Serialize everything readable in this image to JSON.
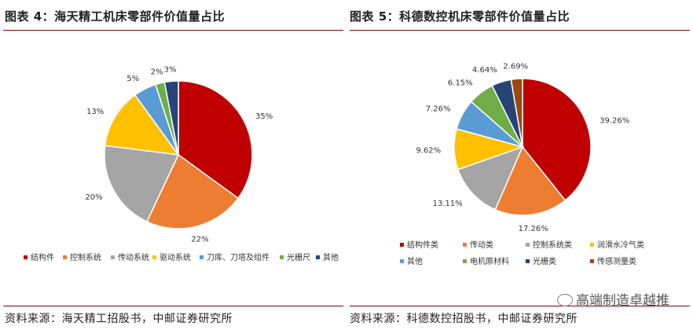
{
  "left": {
    "title": "图表 4：海天精工机床零部件价值量占比",
    "source": "资料来源：海天精工招股书，中邮证券研究所"
  },
  "right": {
    "title": "图表 5：科德数控机床零部件价值量占比",
    "source": "资料来源：科德数控招股书，中邮证券研究所"
  },
  "watermark": "高端制造卓越推",
  "chart_data": [
    {
      "type": "pie",
      "categories": [
        "结构件",
        "控制系统",
        "传动系统",
        "驱动系统",
        "刀库、刀塔及组件",
        "光栅尺",
        "其他"
      ],
      "values": [
        35,
        22,
        20,
        13,
        5,
        2,
        3
      ],
      "value_labels": [
        "35%",
        "22%",
        "20%",
        "13%",
        "5%",
        "2%",
        "3%"
      ],
      "colors": [
        "#c00000",
        "#ed7d31",
        "#a5a5a5",
        "#ffc000",
        "#5b9bd5",
        "#70ad47",
        "#264478"
      ],
      "legend_position": "bottom"
    },
    {
      "type": "pie",
      "categories": [
        "结构件类",
        "传动类",
        "控制系统类",
        "润滑水冷气类",
        "其他",
        "电机原材料",
        "光栅类",
        "传感测量类"
      ],
      "values": [
        39.26,
        17.26,
        13.11,
        9.62,
        7.26,
        6.15,
        4.64,
        2.69
      ],
      "value_labels": [
        "39.26%",
        "17.26%",
        "13.11%",
        "9.62%",
        "7.26%",
        "6.15%",
        "4.64%",
        "2.69%"
      ],
      "colors": [
        "#c00000",
        "#ed7d31",
        "#a5a5a5",
        "#ffc000",
        "#5b9bd5",
        "#70ad47",
        "#264478",
        "#9e480e"
      ],
      "legend_position": "bottom"
    }
  ]
}
